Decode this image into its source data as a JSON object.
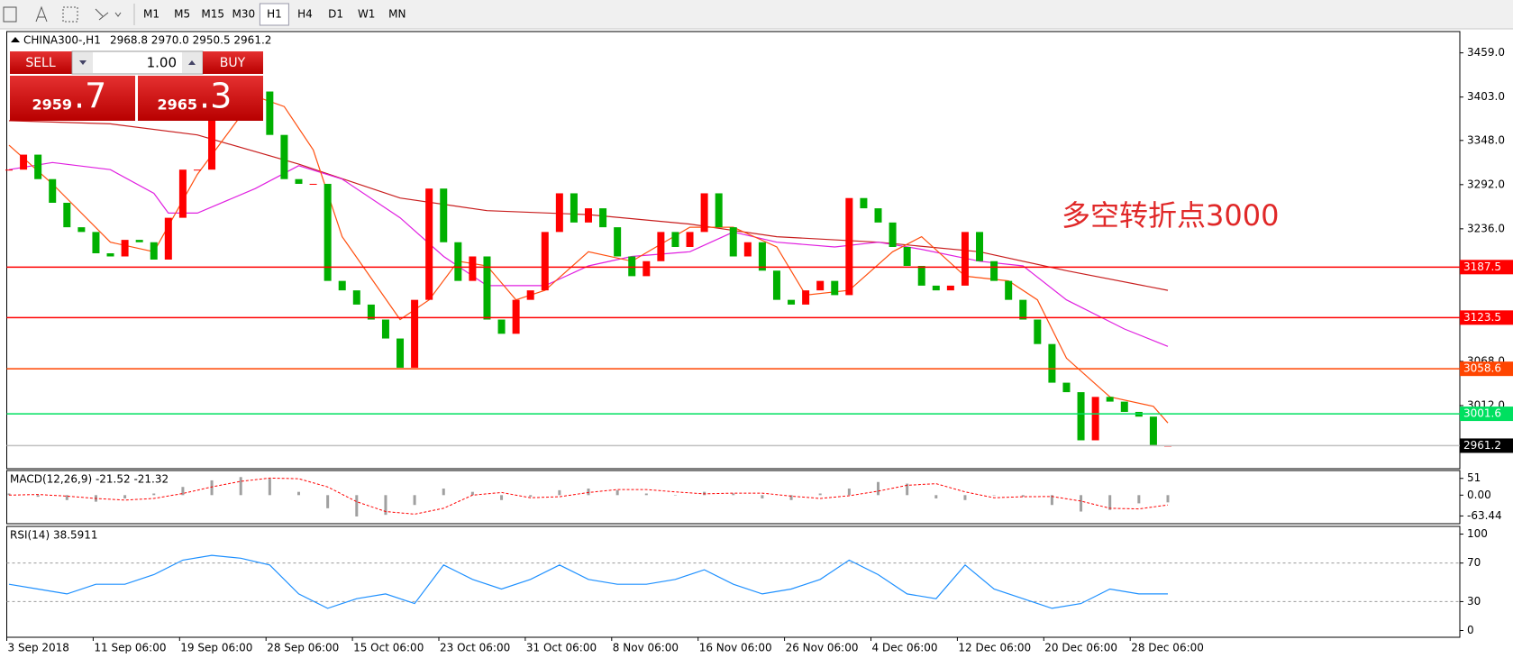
{
  "toolbar": {
    "timeframes": [
      {
        "label": "M1",
        "active": false
      },
      {
        "label": "M5",
        "active": false
      },
      {
        "label": "M15",
        "active": false
      },
      {
        "label": "M30",
        "active": false
      },
      {
        "label": "H1",
        "active": true
      },
      {
        "label": "H4",
        "active": false
      },
      {
        "label": "D1",
        "active": false
      },
      {
        "label": "W1",
        "active": false
      },
      {
        "label": "MN",
        "active": false
      }
    ]
  },
  "trade_panel": {
    "sell": "SELL",
    "lot": "1.00",
    "buy": "BUY",
    "bid_main": "2959",
    "bid_frac": ".7",
    "ask_main": "2965",
    "ask_frac": ".3"
  },
  "main_chart": {
    "type": "candlestick",
    "title": "CHINA300-,H1",
    "header_values": "2968.8 2970.0 2950.5 2961.2",
    "annotation": "多空转折点3000",
    "ylim": [
      2932,
      3486
    ],
    "yticks": [
      {
        "value": 3459,
        "label": "3459.0"
      },
      {
        "value": 3403,
        "label": "3403.0"
      },
      {
        "value": 3348,
        "label": "3348.0"
      },
      {
        "value": 3292,
        "label": "3292.0"
      },
      {
        "value": 3236,
        "label": "3236.0"
      },
      {
        "value": 3068,
        "label": "3068.0"
      },
      {
        "value": 3012,
        "label": "3012.0"
      }
    ],
    "up_color": "#ff0000",
    "down_color": "#00b000",
    "closes": [
      3311,
      3330,
      3299,
      3269,
      3238,
      3232,
      3205,
      3201,
      3222,
      3219,
      3197,
      3250,
      3311,
      3311,
      3391,
      3397,
      3404,
      3410,
      3355,
      3299,
      3293,
      3293,
      3170,
      3158,
      3140,
      3121,
      3097,
      3060,
      3146,
      3287,
      3219,
      3170,
      3201,
      3121,
      3103,
      3146,
      3158,
      3232,
      3281,
      3244,
      3262,
      3238,
      3201,
      3176,
      3195,
      3232,
      3213,
      3232,
      3281,
      3238,
      3201,
      3219,
      3183,
      3146,
      3140,
      3158,
      3170,
      3152,
      3275,
      3262,
      3244,
      3213,
      3189,
      3164,
      3158,
      3164,
      3232,
      3195,
      3170,
      3146,
      3121,
      3090,
      3041,
      3029,
      2968,
      3023,
      3017,
      3004,
      2998,
      2961,
      2961.2
    ],
    "moving_averages": [
      {
        "color": "#c81e1e",
        "x": [
          0,
          7,
          13,
          20,
          27,
          33,
          40,
          47,
          53,
          60,
          67,
          73,
          80
        ],
        "values": [
          3373,
          3369,
          3355,
          3318,
          3275,
          3259,
          3254,
          3242,
          3226,
          3219,
          3207,
          3183,
          3158
        ]
      },
      {
        "color": "#e020e0",
        "x": [
          0,
          3,
          7,
          10,
          11,
          13,
          17,
          20,
          23,
          27,
          30,
          33,
          37,
          40,
          43,
          47,
          50,
          53,
          57,
          60,
          63,
          67,
          70,
          73,
          77,
          80
        ],
        "values": [
          3311,
          3320,
          3311,
          3281,
          3256,
          3256,
          3287,
          3316,
          3299,
          3250,
          3201,
          3164,
          3164,
          3189,
          3201,
          3207,
          3232,
          3219,
          3213,
          3219,
          3210,
          3195,
          3189,
          3146,
          3109,
          3087
        ]
      },
      {
        "color": "#ff5010",
        "x": [
          0,
          3,
          7,
          10,
          13,
          17,
          19,
          21,
          23,
          27,
          29,
          31,
          33,
          35,
          37,
          40,
          43,
          47,
          50,
          53,
          55,
          58,
          61,
          63,
          66,
          69,
          71,
          73,
          76,
          79,
          80
        ],
        "values": [
          3342,
          3293,
          3219,
          3207,
          3305,
          3404,
          3391,
          3336,
          3226,
          3121,
          3146,
          3195,
          3189,
          3146,
          3158,
          3207,
          3195,
          3238,
          3238,
          3213,
          3152,
          3158,
          3207,
          3226,
          3176,
          3170,
          3146,
          3072,
          3023,
          3011,
          2990
        ]
      }
    ],
    "levels": [
      {
        "value": 3187.5,
        "color": "#ff0000"
      },
      {
        "value": 3123.5,
        "color": "#ff0000"
      },
      {
        "value": 3058.6,
        "color": "#ff4500"
      },
      {
        "value": 3001.6,
        "color": "#00e060"
      }
    ],
    "current_price": {
      "value": 2961.2,
      "color": "#c0c0c0"
    }
  },
  "macd": {
    "title": "MACD(12,26,9) -21.52 -21.32",
    "ylim": [
      -87,
      75
    ],
    "yticks": [
      51,
      {
        "value": 0,
        "label": "0.00"
      },
      -63.44
    ],
    "x": [
      0,
      2,
      4,
      6,
      8,
      10,
      12,
      14,
      16,
      18,
      20,
      22,
      24,
      26,
      28,
      30,
      32,
      34,
      36,
      38,
      40,
      42,
      44,
      46,
      48,
      50,
      52,
      54,
      56,
      58,
      60,
      62,
      64,
      66,
      68,
      70,
      72,
      74,
      76,
      78,
      80
    ],
    "histogram": [
      5,
      -5,
      -15,
      -20,
      -10,
      5,
      25,
      45,
      55,
      50,
      10,
      -40,
      -65,
      -60,
      -30,
      20,
      10,
      -15,
      -5,
      15,
      20,
      15,
      5,
      0,
      10,
      5,
      -10,
      -15,
      5,
      20,
      40,
      35,
      -10,
      -15,
      0,
      -5,
      -30,
      -50,
      -45,
      -25,
      -22
    ],
    "signal": [
      0,
      2,
      -3,
      -10,
      -15,
      -10,
      5,
      25,
      42,
      52,
      50,
      25,
      -20,
      -50,
      -58,
      -40,
      0,
      8,
      -8,
      -5,
      8,
      17,
      17,
      10,
      4,
      6,
      6,
      -3,
      -10,
      -2,
      12,
      30,
      35,
      10,
      -8,
      -5,
      -4,
      -18,
      -40,
      -42,
      -30
    ],
    "hist_color": "#a0a0a0",
    "signal_color": "#ff0000"
  },
  "rsi": {
    "title": "RSI(14) 38.5911",
    "ylim": [
      -7,
      108
    ],
    "yticks": [
      100,
      70,
      30,
      0
    ],
    "levels": [
      70,
      30
    ],
    "color": "#1e90ff",
    "x": [
      0,
      2,
      4,
      6,
      8,
      10,
      12,
      14,
      16,
      18,
      20,
      22,
      24,
      26,
      28,
      30,
      32,
      34,
      36,
      38,
      40,
      42,
      44,
      46,
      48,
      50,
      52,
      54,
      56,
      58,
      60,
      62,
      64,
      66,
      68,
      70,
      72,
      74,
      76,
      78,
      80
    ],
    "values": [
      48,
      43,
      38,
      48,
      48,
      58,
      73,
      78,
      75,
      68,
      38,
      23,
      33,
      38,
      28,
      68,
      53,
      43,
      53,
      68,
      53,
      48,
      48,
      53,
      63,
      48,
      38,
      43,
      53,
      73,
      58,
      38,
      33,
      68,
      43,
      33,
      23,
      28,
      43,
      38,
      38
    ]
  },
  "time_axis": {
    "labels": [
      "3 Sep 2018",
      "11 Sep 06:00",
      "19 Sep 06:00",
      "28 Sep 06:00",
      "15 Oct 06:00",
      "23 Oct 06:00",
      "31 Oct 06:00",
      "8 Nov 06:00",
      "16 Nov 06:00",
      "26 Nov 06:00",
      "4 Dec 06:00",
      "12 Dec 06:00",
      "20 Dec 06:00",
      "28 Dec 06:00"
    ]
  }
}
